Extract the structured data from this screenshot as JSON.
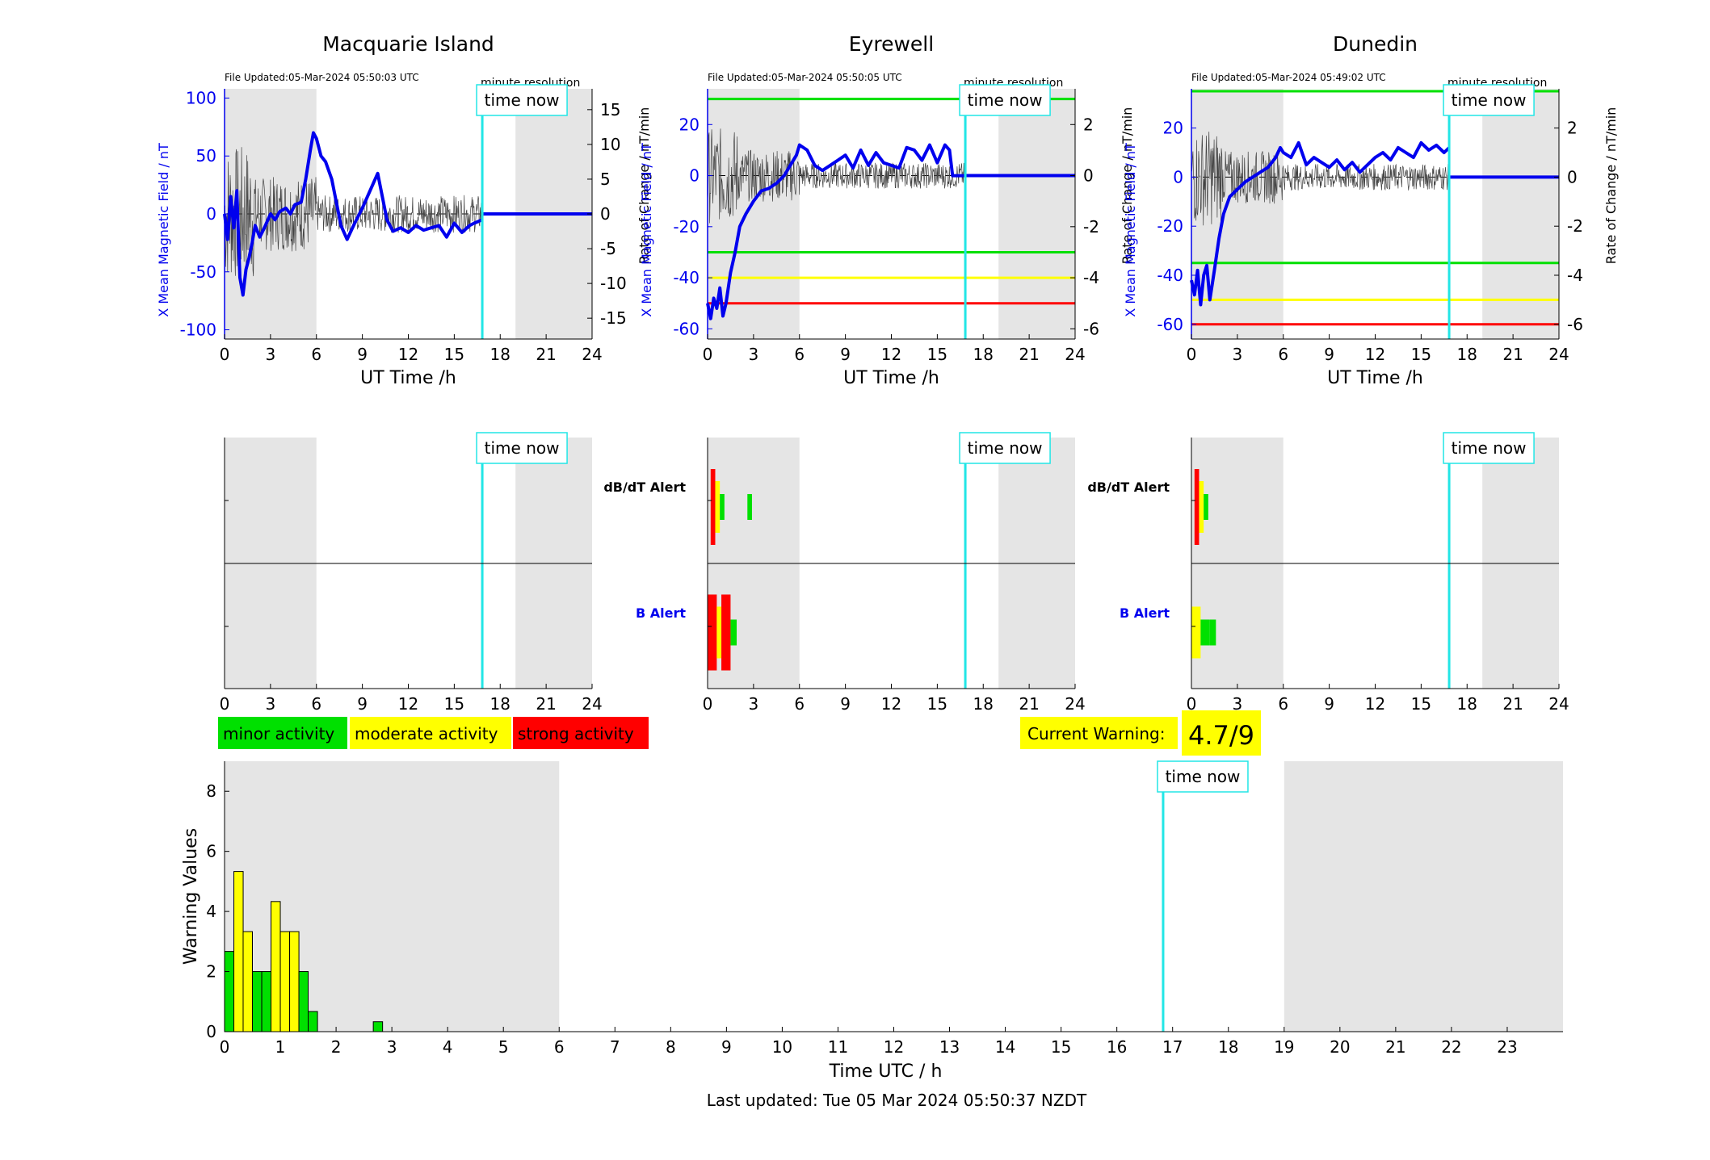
{
  "figure": {
    "last_updated": "Last updated: Tue 05 Mar 2024 05:50:37 NZDT",
    "time_now_label": "time now",
    "resolution_note": "minute resolution",
    "time_now_hour": 16.83
  },
  "stations": [
    {
      "name": "Macquarie Island",
      "file_updated": "File Updated:05-Mar-2024 05:50:03 UTC",
      "ylabel_left": "X Mean Magnetic Field / nT",
      "ylabel_right": "Rate of Change / nT/min",
      "xlabel": "UT Time /h",
      "ylim": [
        -108,
        108
      ],
      "yticks": [
        "100",
        "50",
        "0",
        "-50",
        "-100"
      ],
      "ytick_values": [
        100,
        50,
        0,
        -50,
        -100
      ],
      "right_ylim": [
        -18,
        18
      ],
      "right_yticks": [
        "15",
        "10",
        "5",
        "0",
        "-5",
        "-10",
        "-15"
      ],
      "right_ytick_values": [
        15,
        10,
        5,
        0,
        -5,
        -10,
        -15
      ],
      "thresholds": [],
      "field_x": [
        0,
        0.2,
        0.4,
        0.6,
        0.8,
        1.0,
        1.2,
        1.4,
        1.6,
        1.8,
        2.0,
        2.3,
        2.6,
        3.0,
        3.3,
        3.6,
        4.0,
        4.3,
        4.6,
        5.0,
        5.3,
        5.6,
        5.8,
        6.0,
        6.3,
        6.6,
        7.0,
        7.3,
        7.6,
        8.0,
        8.5,
        9.0,
        9.5,
        10.0,
        10.3,
        10.6,
        11.0,
        11.5,
        12.0,
        12.5,
        13.0,
        13.5,
        14.0,
        14.5,
        15.0,
        15.5,
        16.0,
        16.3,
        16.83
      ],
      "field_y": [
        0,
        -22,
        15,
        -12,
        20,
        -55,
        -70,
        -48,
        -38,
        -25,
        -10,
        -20,
        -12,
        0,
        -5,
        2,
        5,
        0,
        8,
        10,
        30,
        55,
        70,
        65,
        50,
        45,
        30,
        10,
        -10,
        -22,
        -8,
        5,
        20,
        35,
        15,
        -5,
        -15,
        -12,
        -16,
        -10,
        -14,
        -12,
        -10,
        -20,
        -8,
        -16,
        -10,
        -8,
        -5
      ],
      "field_after_value": 0,
      "dbdt_alert": [],
      "b_alert": []
    },
    {
      "name": "Eyrewell",
      "file_updated": "File Updated:05-Mar-2024 05:50:05 UTC",
      "ylabel_left": "X Mean Magnetic Field / nT",
      "ylabel_right": "Rate of Change / nT/min",
      "xlabel": "UT Time /h",
      "ylim": [
        -64,
        34
      ],
      "yticks": [
        "20",
        "0",
        "-20",
        "-40",
        "-60"
      ],
      "ytick_values": [
        20,
        0,
        -20,
        -40,
        -60
      ],
      "right_ylim": [
        -6.4,
        3.4
      ],
      "right_yticks": [
        "2",
        "0",
        "-2",
        "-4",
        "-6"
      ],
      "right_ytick_values": [
        2,
        0,
        -2,
        -4,
        -6
      ],
      "thresholds": [
        {
          "value": 30,
          "color": "#00e000"
        },
        {
          "value": -30,
          "color": "#00e000"
        },
        {
          "value": -40,
          "color": "#ffff00"
        },
        {
          "value": -50,
          "color": "#ff0000"
        }
      ],
      "field_x": [
        0,
        0.2,
        0.4,
        0.6,
        0.8,
        1.0,
        1.2,
        1.5,
        1.8,
        2.1,
        2.5,
        3.0,
        3.5,
        4.0,
        4.5,
        5.0,
        5.5,
        5.8,
        6.0,
        6.5,
        7.0,
        7.5,
        8.0,
        8.5,
        9.0,
        9.5,
        10.0,
        10.5,
        11.0,
        11.5,
        12.0,
        12.5,
        13.0,
        13.5,
        14.0,
        14.5,
        15.0,
        15.5,
        15.8,
        16.0,
        16.83
      ],
      "field_y": [
        -50,
        -56,
        -48,
        -52,
        -44,
        -55,
        -50,
        -38,
        -30,
        -20,
        -15,
        -10,
        -6,
        -5,
        -3,
        0,
        5,
        8,
        12,
        10,
        4,
        2,
        4,
        6,
        8,
        3,
        10,
        4,
        9,
        5,
        4,
        3,
        11,
        10,
        6,
        12,
        5,
        12,
        10,
        0,
        0
      ],
      "field_after_value": 0,
      "dbdt_alert": [
        {
          "start": 0.2,
          "end": 0.5,
          "level": "strong"
        },
        {
          "start": 0.5,
          "end": 0.8,
          "level": "moderate"
        },
        {
          "start": 0.8,
          "end": 1.1,
          "level": "minor"
        },
        {
          "start": 2.6,
          "end": 2.9,
          "level": "minor"
        }
      ],
      "b_alert": [
        {
          "start": 0,
          "end": 0.6,
          "level": "strong"
        },
        {
          "start": 0.6,
          "end": 0.9,
          "level": "moderate"
        },
        {
          "start": 0.9,
          "end": 1.5,
          "level": "strong"
        },
        {
          "start": 1.5,
          "end": 1.9,
          "level": "minor"
        }
      ]
    },
    {
      "name": "Dunedin",
      "file_updated": "File Updated:05-Mar-2024 05:49:02 UTC",
      "ylabel_left": "X Mean Magnetic Field / nT",
      "ylabel_right": "Rate of Change / nT/min",
      "xlabel": "UT Time /h",
      "ylim": [
        -66,
        36
      ],
      "yticks": [
        "20",
        "0",
        "-20",
        "-40",
        "-60"
      ],
      "ytick_values": [
        20,
        0,
        -20,
        -40,
        -60
      ],
      "right_ylim": [
        -6.6,
        3.6
      ],
      "right_yticks": [
        "2",
        "0",
        "-2",
        "-4",
        "-6"
      ],
      "right_ytick_values": [
        2,
        0,
        -2,
        -4,
        -6
      ],
      "thresholds": [
        {
          "value": 35,
          "color": "#00e000"
        },
        {
          "value": -35,
          "color": "#00e000"
        },
        {
          "value": -50,
          "color": "#ffff00"
        },
        {
          "value": -60,
          "color": "#ff0000"
        }
      ],
      "field_x": [
        0,
        0.2,
        0.4,
        0.6,
        0.8,
        1.0,
        1.2,
        1.5,
        1.8,
        2.1,
        2.5,
        3.0,
        3.5,
        4.0,
        4.5,
        5.0,
        5.5,
        5.8,
        6.0,
        6.5,
        7.0,
        7.5,
        8.0,
        8.5,
        9.0,
        9.5,
        10.0,
        10.5,
        11.0,
        11.5,
        12.0,
        12.5,
        13.0,
        13.5,
        14.0,
        14.5,
        15.0,
        15.5,
        16.0,
        16.5,
        16.83
      ],
      "field_y": [
        -42,
        -48,
        -38,
        -52,
        -40,
        -36,
        -50,
        -38,
        -25,
        -15,
        -8,
        -5,
        -2,
        0,
        2,
        4,
        8,
        12,
        10,
        8,
        14,
        5,
        8,
        6,
        4,
        7,
        3,
        6,
        2,
        5,
        8,
        10,
        7,
        12,
        10,
        8,
        14,
        11,
        13,
        10,
        12
      ],
      "field_after_value": 0,
      "dbdt_alert": [
        {
          "start": 0.2,
          "end": 0.5,
          "level": "strong"
        },
        {
          "start": 0.5,
          "end": 0.8,
          "level": "moderate"
        },
        {
          "start": 0.8,
          "end": 1.1,
          "level": "minor"
        }
      ],
      "b_alert": [
        {
          "start": 0,
          "end": 0.6,
          "level": "moderate"
        },
        {
          "start": 0.6,
          "end": 1.2,
          "level": "minor"
        },
        {
          "start": 1.2,
          "end": 1.6,
          "level": "minor"
        }
      ]
    }
  ],
  "alert_labels": {
    "dbdt": "dB/dT Alert",
    "b": "B Alert"
  },
  "legend": {
    "minor": "minor activity",
    "moderate": "moderate activity",
    "strong": "strong activity"
  },
  "colors": {
    "minor": "#00e000",
    "moderate": "#ffff00",
    "strong": "#ff0000",
    "night_shade": "#e5e5e5",
    "field_line": "#0000ee",
    "time_now": "#22e6e6"
  },
  "night": [
    {
      "start": 0,
      "end": 6
    },
    {
      "start": 19,
      "end": 24
    }
  ],
  "current_warning": {
    "label": "Current Warning:",
    "value": "4.7/9"
  },
  "chart_data": {
    "type": "bar",
    "xlabel": "Time UTC / h",
    "ylabel": "Warning Values",
    "xlim": [
      0,
      24
    ],
    "ylim": [
      0,
      9
    ],
    "xticks": [
      0,
      1,
      2,
      3,
      4,
      5,
      6,
      7,
      8,
      9,
      10,
      11,
      12,
      13,
      14,
      15,
      16,
      17,
      18,
      19,
      20,
      21,
      22,
      23
    ],
    "yticks": [
      0,
      2,
      4,
      6,
      8
    ],
    "bar_width": 0.1667,
    "bars": [
      {
        "x": 0.0,
        "value": 2.67,
        "level": "minor"
      },
      {
        "x": 0.167,
        "value": 5.33,
        "level": "moderate"
      },
      {
        "x": 0.333,
        "value": 3.33,
        "level": "moderate"
      },
      {
        "x": 0.5,
        "value": 2.0,
        "level": "minor"
      },
      {
        "x": 0.667,
        "value": 2.0,
        "level": "minor"
      },
      {
        "x": 0.833,
        "value": 4.33,
        "level": "moderate"
      },
      {
        "x": 1.0,
        "value": 3.33,
        "level": "moderate"
      },
      {
        "x": 1.167,
        "value": 3.33,
        "level": "moderate"
      },
      {
        "x": 1.333,
        "value": 2.0,
        "level": "minor"
      },
      {
        "x": 1.5,
        "value": 0.67,
        "level": "minor"
      },
      {
        "x": 2.667,
        "value": 0.33,
        "level": "minor"
      }
    ]
  }
}
